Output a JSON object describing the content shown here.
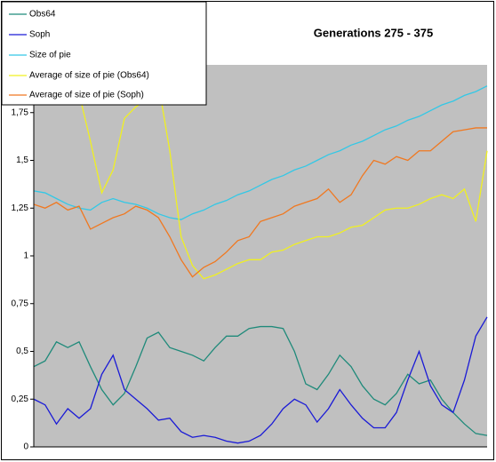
{
  "chart_data": {
    "type": "line",
    "title": "Generations 275 - 375",
    "categories": [
      null,
      null,
      null,
      null,
      null,
      null,
      null,
      null,
      null,
      null,
      null,
      null,
      null,
      null,
      null,
      null,
      null,
      null,
      null,
      null,
      null,
      null,
      null,
      null,
      null,
      null,
      null,
      null,
      null,
      null,
      null,
      null,
      null,
      null,
      null,
      null,
      null,
      null,
      null,
      null,
      null
    ],
    "series": [
      {
        "name": "Obs64",
        "color": "#1f8a7a",
        "values": [
          0.42,
          0.45,
          0.55,
          0.52,
          0.55,
          0.42,
          0.3,
          0.22,
          0.28,
          0.42,
          0.57,
          0.6,
          0.52,
          0.5,
          0.48,
          0.45,
          0.52,
          0.58,
          0.58,
          0.62,
          0.63,
          0.63,
          0.62,
          0.5,
          0.33,
          0.3,
          0.38,
          0.48,
          0.42,
          0.32,
          0.25,
          0.22,
          0.28,
          0.38,
          0.33,
          0.35,
          0.25,
          0.18,
          0.12,
          0.07,
          0.06
        ]
      },
      {
        "name": "Soph",
        "color": "#1a1ad6",
        "values": [
          0.25,
          0.22,
          0.12,
          0.2,
          0.15,
          0.2,
          0.38,
          0.48,
          0.3,
          0.25,
          0.2,
          0.14,
          0.15,
          0.08,
          0.05,
          0.06,
          0.05,
          0.03,
          0.02,
          0.03,
          0.06,
          0.12,
          0.2,
          0.25,
          0.22,
          0.13,
          0.2,
          0.3,
          0.22,
          0.15,
          0.1,
          0.1,
          0.18,
          0.35,
          0.5,
          0.32,
          0.22,
          0.18,
          0.35,
          0.58,
          0.68
        ]
      },
      {
        "name": "Size of pie",
        "color": "#33c8e6",
        "values": [
          1.34,
          1.33,
          1.3,
          1.27,
          1.25,
          1.24,
          1.28,
          1.3,
          1.28,
          1.27,
          1.25,
          1.22,
          1.2,
          1.19,
          1.22,
          1.24,
          1.27,
          1.29,
          1.32,
          1.34,
          1.37,
          1.4,
          1.42,
          1.45,
          1.47,
          1.5,
          1.53,
          1.55,
          1.58,
          1.6,
          1.63,
          1.66,
          1.68,
          1.71,
          1.73,
          1.76,
          1.79,
          1.81,
          1.84,
          1.86,
          1.89
        ]
      },
      {
        "name": "Average of size of pie (Obs64)",
        "color": "#f0f020",
        "values": [
          1.98,
          1.97,
          1.95,
          1.92,
          1.85,
          1.6,
          1.33,
          1.45,
          1.72,
          1.78,
          1.82,
          1.9,
          1.55,
          1.1,
          0.95,
          0.88,
          0.9,
          0.93,
          0.96,
          0.98,
          0.98,
          1.02,
          1.03,
          1.06,
          1.08,
          1.1,
          1.1,
          1.12,
          1.15,
          1.16,
          1.2,
          1.24,
          1.25,
          1.25,
          1.27,
          1.3,
          1.32,
          1.3,
          1.35,
          1.18,
          1.55
        ]
      },
      {
        "name": "Average of size of pie (Soph)",
        "color": "#f07820",
        "values": [
          1.27,
          1.25,
          1.28,
          1.24,
          1.26,
          1.14,
          1.17,
          1.2,
          1.22,
          1.26,
          1.24,
          1.2,
          1.1,
          0.98,
          0.89,
          0.94,
          0.97,
          1.02,
          1.08,
          1.1,
          1.18,
          1.2,
          1.22,
          1.26,
          1.28,
          1.3,
          1.35,
          1.28,
          1.32,
          1.42,
          1.5,
          1.48,
          1.52,
          1.5,
          1.55,
          1.55,
          1.6,
          1.65,
          1.66,
          1.67,
          1.67
        ]
      }
    ],
    "ylim": [
      0,
      2
    ],
    "yticks": [
      0,
      {
        "value": 0.25,
        "label": "0,25"
      },
      {
        "value": 0.5,
        "label": "0,5"
      },
      {
        "value": 0.75,
        "label": "0,75"
      },
      1,
      {
        "value": 1.25,
        "label": "1,25"
      },
      {
        "value": 1.5,
        "label": "1,5"
      },
      {
        "value": 1.75,
        "label": "1,75"
      }
    ],
    "plot_background": "#c0c0c0",
    "legend": "top-left"
  }
}
